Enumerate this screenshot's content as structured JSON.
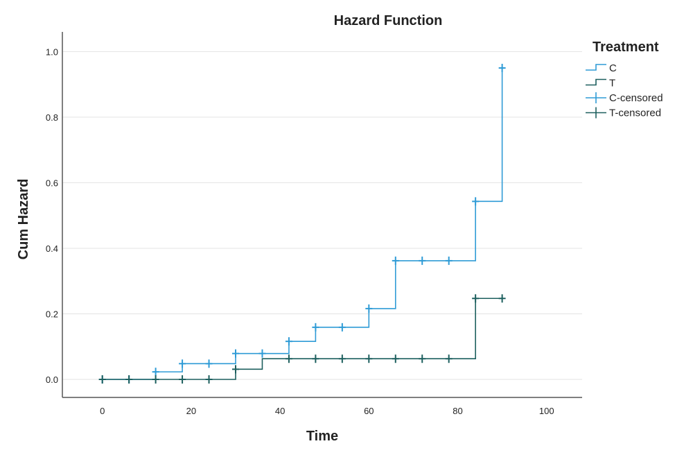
{
  "chart_data": {
    "type": "line",
    "title": "Hazard Function",
    "xlabel": "Time",
    "ylabel": "Cum Hazard",
    "xlim": [
      -9,
      108
    ],
    "ylim": [
      -0.055,
      1.06
    ],
    "x_ticks": [
      "0",
      "20",
      "40",
      "60",
      "80",
      "100"
    ],
    "x_tick_values": [
      0,
      20,
      40,
      60,
      80,
      100
    ],
    "y_ticks": [
      "0.0",
      "0.2",
      "0.4",
      "0.6",
      "0.8",
      "1.0"
    ],
    "y_tick_values": [
      0.0,
      0.2,
      0.4,
      0.6,
      0.8,
      1.0
    ],
    "grid": "horizontal",
    "legend_position": "right",
    "legend_title": "Treatment",
    "legend": [
      "C",
      "T",
      "C-censored",
      "T-censored"
    ],
    "series": [
      {
        "name": "C",
        "step": true,
        "color": "#2e9bd6",
        "x": [
          0,
          12,
          18,
          30,
          42,
          48,
          60,
          66,
          84,
          90
        ],
        "y": [
          0.0,
          0.023,
          0.048,
          0.079,
          0.116,
          0.159,
          0.216,
          0.362,
          0.543,
          0.95
        ],
        "censored_x": [
          0,
          6,
          12,
          18,
          24,
          30,
          36,
          42,
          48,
          54,
          60,
          66,
          72,
          78,
          84,
          90
        ],
        "censored_y": [
          0.0,
          0.0,
          0.023,
          0.048,
          0.048,
          0.079,
          0.079,
          0.116,
          0.159,
          0.159,
          0.216,
          0.362,
          0.362,
          0.362,
          0.543,
          0.95
        ]
      },
      {
        "name": "T",
        "step": true,
        "color": "#1c5f5e",
        "x": [
          0,
          30,
          36,
          84,
          90
        ],
        "y": [
          0.0,
          0.031,
          0.063,
          0.247,
          0.247
        ],
        "censored_x": [
          0,
          6,
          12,
          18,
          24,
          30,
          42,
          48,
          54,
          60,
          66,
          72,
          78,
          84,
          90
        ],
        "censored_y": [
          0.0,
          0.0,
          0.0,
          0.0,
          0.0,
          0.031,
          0.063,
          0.063,
          0.063,
          0.063,
          0.063,
          0.063,
          0.063,
          0.247,
          0.247
        ]
      }
    ]
  }
}
